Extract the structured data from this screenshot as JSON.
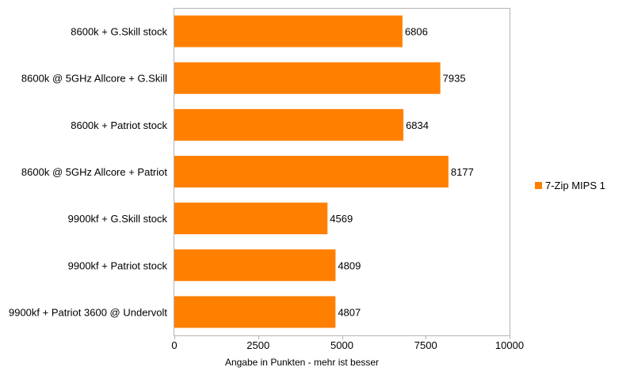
{
  "chart_data": {
    "type": "bar",
    "orientation": "horizontal",
    "categories": [
      "8600k + G.Skill stock",
      "8600k @ 5GHz Allcore + G.Skill",
      "8600k + Patriot stock",
      "8600k @ 5GHz Allcore + Patriot",
      "9900kf + G.Skill stock",
      "9900kf + Patriot stock",
      "9900kf + Patriot 3600 @ Undervolt"
    ],
    "series": [
      {
        "name": "7-Zip MIPS 1",
        "color": "#ff8000",
        "values": [
          6806,
          7935,
          6834,
          8177,
          4569,
          4809,
          4807
        ]
      }
    ],
    "xlabel": "Angabe in Punkten - mehr ist besser",
    "xlim": [
      0,
      10000
    ],
    "xticks": [
      0,
      2500,
      5000,
      7500,
      10000
    ],
    "grid": false,
    "legend_position": "right"
  }
}
